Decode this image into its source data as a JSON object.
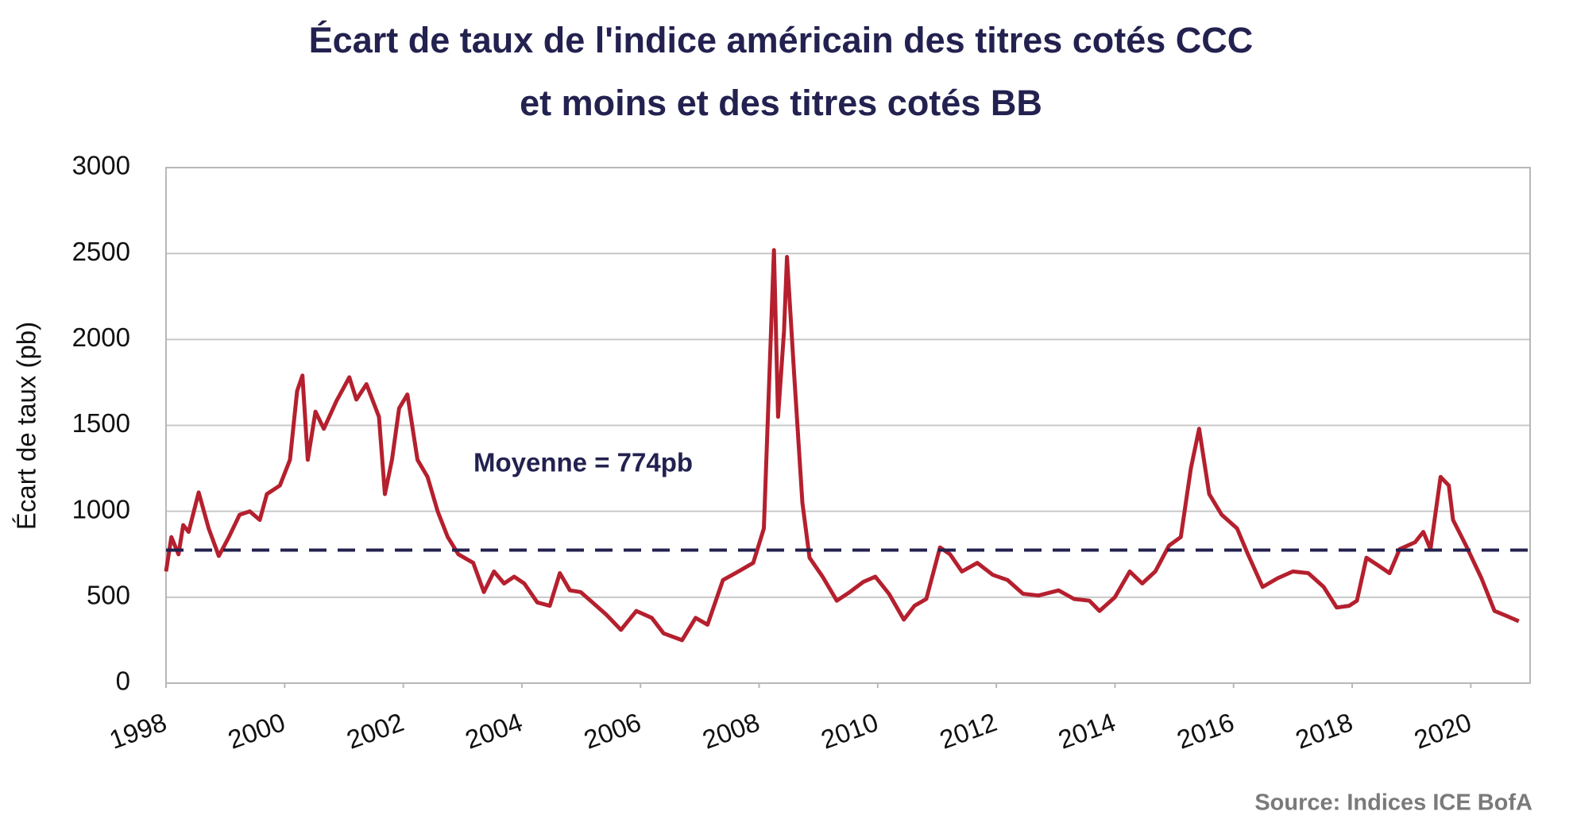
{
  "chart_data": {
    "type": "line",
    "title": [
      "Écart de taux de l'indice américain des titres cotés CCC",
      "et moins et des titres cotés BB"
    ],
    "ylabel": "Écart de taux (pb)",
    "source": "Source: Indices ICE BofA",
    "xlim": [
      1998,
      2021
    ],
    "xticks": [
      1998,
      2000,
      2002,
      2004,
      2006,
      2008,
      2010,
      2012,
      2014,
      2016,
      2018,
      2020
    ],
    "ylim": [
      0,
      3000
    ],
    "yticks": [
      0,
      500,
      1000,
      1500,
      2000,
      2500,
      3000
    ],
    "grid": true,
    "mean_line": {
      "value": 774,
      "label": "Moyenne = 774pb",
      "color": "#23214f"
    },
    "series": [
      {
        "color": "#b5202e",
        "x": [
          1998.0,
          1998.09,
          1998.21,
          1998.29,
          1998.38,
          1998.55,
          1998.72,
          1998.89,
          1999.06,
          1999.24,
          1999.41,
          1999.58,
          1999.7,
          1999.92,
          2000.09,
          2000.21,
          2000.3,
          2000.39,
          2000.52,
          2000.66,
          2000.87,
          2001.09,
          2001.21,
          2001.38,
          2001.59,
          2001.69,
          2001.81,
          2001.93,
          2002.07,
          2002.24,
          2002.41,
          2002.58,
          2002.75,
          2002.93,
          2003.18,
          2003.36,
          2003.53,
          2003.7,
          2003.87,
          2004.04,
          2004.26,
          2004.47,
          2004.64,
          2004.81,
          2004.99,
          2005.19,
          2005.42,
          2005.67,
          2005.93,
          2006.19,
          2006.39,
          2006.7,
          2006.93,
          2007.13,
          2007.39,
          2007.65,
          2007.9,
          2008.08,
          2008.25,
          2008.32,
          2008.42,
          2008.47,
          2008.59,
          2008.73,
          2008.85,
          2009.07,
          2009.31,
          2009.53,
          2009.76,
          2009.96,
          2010.19,
          2010.44,
          2010.62,
          2010.82,
          2011.05,
          2011.22,
          2011.42,
          2011.68,
          2011.94,
          2012.19,
          2012.45,
          2012.71,
          2013.05,
          2013.31,
          2013.57,
          2013.74,
          2014.0,
          2014.25,
          2014.46,
          2014.68,
          2014.91,
          2015.11,
          2015.28,
          2015.42,
          2015.59,
          2015.8,
          2016.06,
          2016.23,
          2016.49,
          2016.74,
          2017.0,
          2017.26,
          2017.52,
          2017.74,
          2017.95,
          2018.08,
          2018.24,
          2018.46,
          2018.63,
          2018.8,
          2019.06,
          2019.2,
          2019.32,
          2019.49,
          2019.63,
          2019.7,
          2019.92,
          2020.18,
          2020.4,
          2020.61,
          2020.81
        ],
        "values": [
          650,
          850,
          750,
          920,
          880,
          1110,
          900,
          740,
          850,
          980,
          1000,
          950,
          1100,
          1150,
          1300,
          1700,
          1790,
          1300,
          1580,
          1480,
          1640,
          1780,
          1650,
          1740,
          1550,
          1100,
          1300,
          1600,
          1680,
          1300,
          1200,
          1000,
          850,
          750,
          700,
          530,
          650,
          580,
          620,
          580,
          470,
          450,
          640,
          540,
          530,
          470,
          400,
          310,
          420,
          380,
          290,
          250,
          380,
          340,
          600,
          650,
          700,
          900,
          2520,
          1550,
          2050,
          2480,
          1800,
          1050,
          730,
          620,
          480,
          530,
          590,
          620,
          520,
          370,
          450,
          490,
          790,
          750,
          650,
          700,
          630,
          600,
          520,
          510,
          540,
          490,
          480,
          420,
          500,
          650,
          580,
          650,
          800,
          850,
          1250,
          1480,
          1100,
          980,
          900,
          760,
          560,
          610,
          650,
          640,
          560,
          440,
          450,
          480,
          730,
          680,
          640,
          780,
          820,
          880,
          780,
          1200,
          1150,
          950,
          800,
          610,
          420,
          390,
          360
        ]
      }
    ]
  }
}
